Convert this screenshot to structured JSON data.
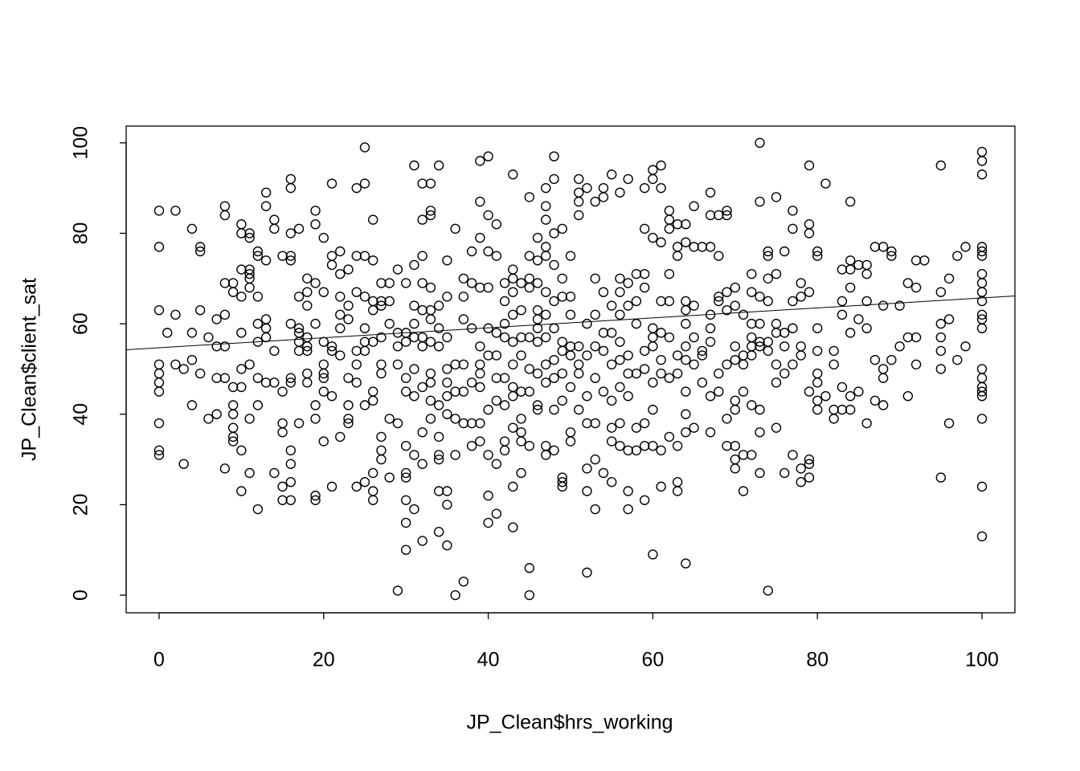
{
  "chart_data": {
    "type": "scatter",
    "x_label": "JP_Clean$hrs_working",
    "y_label": "JP_Clean$client_sat",
    "xlim": [
      -4,
      104
    ],
    "ylim": [
      -3.9,
      103.7
    ],
    "xticks": [
      0,
      20,
      40,
      60,
      80,
      100
    ],
    "yticks": [
      0,
      20,
      40,
      60,
      80,
      100
    ],
    "color": "#000000",
    "trend_line": {
      "intercept": 54.7,
      "slope": 0.11
    },
    "x": [
      0,
      0,
      0,
      0,
      0,
      0,
      0,
      0,
      0,
      0,
      1,
      2,
      2,
      2,
      3,
      3,
      4,
      4,
      4,
      4,
      5,
      5,
      5,
      5,
      6,
      6,
      7,
      7,
      7,
      7,
      8,
      8,
      8,
      8,
      8,
      8,
      8,
      9,
      9,
      9,
      9,
      9,
      9,
      9,
      9,
      10,
      10,
      10,
      10,
      10,
      10,
      10,
      10,
      10,
      11,
      11,
      11,
      11,
      11,
      11,
      11,
      11,
      11,
      12,
      12,
      12,
      12,
      12,
      12,
      12,
      12,
      13,
      13,
      13,
      13,
      13,
      13,
      13,
      14,
      14,
      14,
      14,
      14,
      15,
      15,
      15,
      15,
      15,
      15,
      16,
      16,
      16,
      16,
      16,
      16,
      16,
      16,
      16,
      16,
      16,
      16,
      17,
      17,
      17,
      17,
      17,
      17,
      17,
      18,
      18,
      18,
      18,
      18,
      18,
      18,
      18,
      19,
      19,
      19,
      19,
      19,
      19,
      19,
      19,
      20,
      20,
      20,
      20,
      20,
      20,
      20,
      20,
      21,
      21,
      21,
      21,
      21,
      21,
      21,
      22,
      22,
      22,
      22,
      22,
      22,
      22,
      23,
      23,
      23,
      23,
      23,
      23,
      23,
      24,
      24,
      24,
      24,
      24,
      24,
      24,
      25,
      25,
      25,
      25,
      25,
      25,
      25,
      25,
      25,
      26,
      26,
      26,
      26,
      26,
      26,
      26,
      26,
      26,
      26,
      27,
      27,
      27,
      27,
      27,
      27,
      27,
      27,
      27,
      28,
      28,
      28,
      28,
      28,
      29,
      29,
      29,
      29,
      29,
      29,
      30,
      30,
      30,
      30,
      30,
      30,
      30,
      30,
      30,
      30,
      30,
      31,
      31,
      31,
      31,
      31,
      31,
      31,
      31,
      31,
      32,
      32,
      32,
      32,
      32,
      32,
      32,
      32,
      32,
      32,
      32,
      33,
      33,
      33,
      33,
      33,
      33,
      33,
      33,
      33,
      33,
      33,
      34,
      34,
      34,
      34,
      34,
      34,
      34,
      34,
      34,
      34,
      35,
      35,
      35,
      35,
      35,
      35,
      35,
      35,
      35,
      35,
      36,
      36,
      36,
      36,
      36,
      36,
      37,
      37,
      37,
      37,
      37,
      37,
      37,
      38,
      38,
      38,
      38,
      38,
      38,
      39,
      39,
      39,
      39,
      39,
      39,
      39,
      39,
      39,
      39,
      40,
      40,
      40,
      40,
      40,
      40,
      40,
      40,
      40,
      40,
      41,
      41,
      41,
      41,
      41,
      41,
      41,
      41,
      42,
      42,
      42,
      42,
      42,
      42,
      42,
      42,
      43,
      43,
      43,
      43,
      43,
      43,
      43,
      43,
      43,
      43,
      43,
      43,
      44,
      44,
      44,
      44,
      44,
      44,
      44,
      44,
      44,
      45,
      45,
      45,
      45,
      45,
      45,
      45,
      45,
      45,
      45,
      46,
      46,
      46,
      46,
      46,
      46,
      46,
      46,
      46,
      46,
      47,
      47,
      47,
      47,
      47,
      47,
      47,
      47,
      47,
      47,
      47,
      47,
      48,
      48,
      48,
      48,
      48,
      48,
      48,
      48,
      48,
      48,
      49,
      49,
      49,
      49,
      49,
      49,
      49,
      49,
      49,
      49,
      50,
      50,
      50,
      50,
      50,
      50,
      50,
      50,
      51,
      51,
      51,
      51,
      51,
      51,
      51,
      51,
      52,
      52,
      52,
      52,
      52,
      52,
      52,
      52,
      53,
      53,
      53,
      53,
      53,
      53,
      53,
      53,
      54,
      54,
      54,
      54,
      54,
      54,
      54,
      55,
      55,
      55,
      55,
      55,
      55,
      55,
      55,
      56,
      56,
      56,
      56,
      56,
      56,
      56,
      56,
      56,
      57,
      57,
      57,
      57,
      57,
      57,
      57,
      57,
      57,
      58,
      58,
      58,
      58,
      58,
      58,
      59,
      59,
      59,
      59,
      59,
      59,
      59,
      59,
      59,
      60,
      60,
      60,
      60,
      60,
      60,
      60,
      60,
      60,
      60,
      61,
      61,
      61,
      61,
      61,
      61,
      61,
      61,
      61,
      62,
      62,
      62,
      62,
      62,
      62,
      62,
      62,
      63,
      63,
      63,
      63,
      63,
      63,
      63,
      63,
      64,
      64,
      64,
      64,
      64,
      64,
      64,
      64,
      64,
      64,
      64,
      65,
      65,
      65,
      65,
      65,
      65,
      66,
      66,
      66,
      66,
      67,
      67,
      67,
      67,
      67,
      67,
      67,
      67,
      68,
      68,
      68,
      68,
      68,
      68,
      69,
      69,
      69,
      69,
      69,
      69,
      69,
      70,
      70,
      70,
      70,
      70,
      70,
      70,
      70,
      70,
      71,
      71,
      71,
      71,
      71,
      71,
      72,
      72,
      72,
      72,
      72,
      72,
      72,
      72,
      73,
      73,
      73,
      73,
      73,
      73,
      73,
      73,
      73,
      74,
      74,
      74,
      74,
      74,
      74,
      74,
      75,
      75,
      75,
      75,
      75,
      75,
      75,
      76,
      76,
      76,
      76,
      76,
      77,
      77,
      77,
      77,
      77,
      77,
      78,
      78,
      78,
      78,
      78,
      78,
      79,
      79,
      79,
      79,
      79,
      79,
      79,
      79,
      80,
      80,
      80,
      80,
      80,
      80,
      80,
      80,
      81,
      81,
      82,
      82,
      82,
      82,
      83,
      83,
      83,
      83,
      83,
      84,
      84,
      84,
      84,
      84,
      84,
      84,
      85,
      85,
      85,
      86,
      86,
      86,
      86,
      86,
      87,
      87,
      87,
      88,
      88,
      88,
      88,
      88,
      89,
      89,
      89,
      90,
      90,
      91,
      91,
      91,
      92,
      92,
      92,
      92,
      93,
      95,
      95,
      95,
      95,
      95,
      95,
      95,
      96,
      96,
      96,
      97,
      97,
      98,
      98,
      100,
      100,
      100,
      100,
      100,
      100,
      100,
      100,
      100,
      100,
      100,
      100,
      100,
      100,
      100,
      100,
      100,
      100,
      100,
      100,
      100
    ],
    "y": [
      85,
      77,
      63,
      51,
      49,
      47,
      45,
      38,
      32,
      31,
      58,
      85,
      62,
      51,
      50,
      29,
      81,
      58,
      52,
      42,
      77,
      76,
      63,
      49,
      57,
      39,
      61,
      55,
      48,
      40,
      86,
      84,
      69,
      62,
      55,
      48,
      28,
      69,
      67,
      46,
      42,
      40,
      37,
      35,
      34,
      82,
      80,
      72,
      66,
      58,
      50,
      46,
      32,
      23,
      80,
      79,
      72,
      71,
      70,
      68,
      51,
      39,
      27,
      76,
      75,
      66,
      60,
      56,
      48,
      42,
      19,
      89,
      86,
      74,
      61,
      59,
      57,
      47,
      83,
      81,
      54,
      47,
      27,
      75,
      45,
      38,
      36,
      24,
      21,
      92,
      90,
      80,
      75,
      74,
      60,
      48,
      47,
      32,
      29,
      25,
      21,
      81,
      66,
      59,
      58,
      56,
      54,
      38,
      70,
      67,
      64,
      57,
      55,
      54,
      49,
      47,
      85,
      82,
      69,
      60,
      42,
      39,
      22,
      21,
      79,
      67,
      56,
      51,
      49,
      48,
      45,
      34,
      91,
      75,
      73,
      55,
      54,
      44,
      24,
      76,
      71,
      66,
      62,
      59,
      53,
      35,
      72,
      64,
      61,
      48,
      42,
      39,
      38,
      90,
      75,
      67,
      54,
      51,
      47,
      24,
      99,
      91,
      75,
      66,
      59,
      56,
      54,
      42,
      25,
      83,
      74,
      65,
      63,
      56,
      45,
      43,
      27,
      23,
      21,
      69,
      65,
      64,
      57,
      51,
      49,
      35,
      32,
      30,
      69,
      65,
      60,
      39,
      26,
      72,
      58,
      55,
      51,
      38,
      1,
      69,
      58,
      56,
      48,
      45,
      33,
      27,
      26,
      21,
      16,
      10,
      95,
      73,
      64,
      60,
      57,
      50,
      44,
      31,
      19,
      91,
      83,
      75,
      69,
      63,
      57,
      55,
      46,
      36,
      29,
      12,
      91,
      85,
      84,
      68,
      63,
      61,
      56,
      49,
      47,
      43,
      39,
      95,
      64,
      59,
      55,
      42,
      35,
      31,
      30,
      23,
      14,
      74,
      66,
      57,
      50,
      47,
      44,
      40,
      23,
      20,
      11,
      81,
      51,
      45,
      39,
      31,
      0,
      70,
      66,
      61,
      51,
      45,
      38,
      3,
      76,
      69,
      59,
      47,
      38,
      33,
      96,
      87,
      79,
      68,
      55,
      51,
      49,
      46,
      38,
      34,
      97,
      84,
      76,
      68,
      59,
      53,
      41,
      31,
      22,
      16,
      82,
      75,
      58,
      53,
      48,
      43,
      29,
      18,
      69,
      65,
      60,
      57,
      48,
      42,
      34,
      32,
      93,
      72,
      70,
      67,
      62,
      56,
      51,
      46,
      44,
      37,
      24,
      15,
      69,
      63,
      57,
      53,
      45,
      39,
      36,
      34,
      27,
      88,
      75,
      70,
      68,
      57,
      50,
      45,
      33,
      6,
      0,
      79,
      74,
      69,
      63,
      61,
      59,
      56,
      49,
      42,
      41,
      90,
      86,
      83,
      77,
      75,
      67,
      62,
      57,
      51,
      47,
      33,
      31,
      97,
      92,
      80,
      73,
      65,
      59,
      52,
      48,
      41,
      32,
      81,
      70,
      66,
      56,
      54,
      49,
      43,
      26,
      25,
      24,
      75,
      66,
      62,
      55,
      53,
      46,
      36,
      34,
      92,
      89,
      87,
      84,
      55,
      51,
      49,
      41,
      90,
      60,
      53,
      44,
      38,
      28,
      23,
      5,
      87,
      70,
      62,
      55,
      48,
      38,
      30,
      19,
      90,
      88,
      67,
      58,
      54,
      45,
      27,
      93,
      64,
      58,
      51,
      43,
      37,
      34,
      25,
      89,
      70,
      67,
      62,
      56,
      52,
      46,
      38,
      33,
      92,
      69,
      64,
      53,
      49,
      44,
      32,
      23,
      19,
      71,
      65,
      60,
      49,
      37,
      32,
      90,
      81,
      71,
      68,
      54,
      50,
      38,
      33,
      21,
      94,
      92,
      79,
      59,
      57,
      55,
      47,
      41,
      33,
      9,
      95,
      90,
      78,
      65,
      58,
      52,
      49,
      32,
      24,
      85,
      83,
      81,
      71,
      65,
      57,
      48,
      35,
      82,
      77,
      75,
      53,
      49,
      33,
      25,
      23,
      82,
      78,
      65,
      63,
      60,
      55,
      52,
      45,
      40,
      36,
      7,
      86,
      77,
      64,
      57,
      51,
      37,
      77,
      54,
      53,
      47,
      89,
      84,
      77,
      62,
      59,
      56,
      44,
      36,
      84,
      75,
      66,
      65,
      49,
      45,
      85,
      84,
      67,
      63,
      51,
      39,
      33,
      68,
      64,
      55,
      52,
      43,
      41,
      33,
      30,
      28,
      62,
      53,
      51,
      45,
      31,
      23,
      71,
      67,
      60,
      57,
      55,
      53,
      42,
      31,
      100,
      87,
      66,
      60,
      56,
      55,
      41,
      36,
      27,
      76,
      75,
      70,
      65,
      56,
      54,
      1,
      88,
      71,
      60,
      58,
      51,
      47,
      37,
      76,
      58,
      55,
      49,
      27,
      85,
      81,
      65,
      59,
      51,
      31,
      69,
      66,
      55,
      53,
      28,
      25,
      95,
      82,
      80,
      67,
      45,
      30,
      29,
      26,
      76,
      75,
      59,
      54,
      49,
      47,
      43,
      41,
      91,
      44,
      54,
      51,
      41,
      39,
      72,
      65,
      62,
      46,
      41,
      87,
      74,
      72,
      68,
      58,
      44,
      41,
      73,
      61,
      45,
      73,
      71,
      65,
      59,
      38,
      77,
      52,
      43,
      77,
      64,
      50,
      48,
      42,
      76,
      75,
      52,
      64,
      55,
      69,
      57,
      44,
      74,
      68,
      57,
      51,
      74,
      95,
      67,
      60,
      57,
      54,
      50,
      26,
      70,
      61,
      38,
      75,
      52,
      77,
      55,
      98,
      96,
      93,
      77,
      76,
      75,
      71,
      69,
      67,
      65,
      62,
      61,
      59,
      50,
      48,
      46,
      45,
      44,
      39,
      24,
      13
    ]
  }
}
